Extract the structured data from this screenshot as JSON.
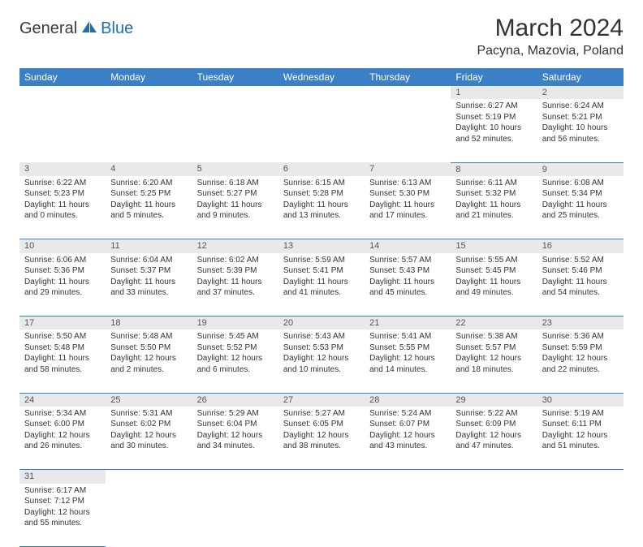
{
  "brand": {
    "text1": "General",
    "text2": "Blue"
  },
  "title": "March 2024",
  "location": "Pacyna, Mazovia, Poland",
  "colors": {
    "header_bg": "#3b7fc4",
    "header_text": "#ffffff",
    "daynum_bg": "#e9e9e9",
    "border": "#3b7fc4",
    "logo_blue": "#1f6fb2"
  },
  "day_headers": [
    "Sunday",
    "Monday",
    "Tuesday",
    "Wednesday",
    "Thursday",
    "Friday",
    "Saturday"
  ],
  "weeks": [
    [
      null,
      null,
      null,
      null,
      null,
      {
        "n": "1",
        "sr": "6:27 AM",
        "ss": "5:19 PM",
        "dl": "10 hours and 52 minutes."
      },
      {
        "n": "2",
        "sr": "6:24 AM",
        "ss": "5:21 PM",
        "dl": "10 hours and 56 minutes."
      }
    ],
    [
      {
        "n": "3",
        "sr": "6:22 AM",
        "ss": "5:23 PM",
        "dl": "11 hours and 0 minutes."
      },
      {
        "n": "4",
        "sr": "6:20 AM",
        "ss": "5:25 PM",
        "dl": "11 hours and 5 minutes."
      },
      {
        "n": "5",
        "sr": "6:18 AM",
        "ss": "5:27 PM",
        "dl": "11 hours and 9 minutes."
      },
      {
        "n": "6",
        "sr": "6:15 AM",
        "ss": "5:28 PM",
        "dl": "11 hours and 13 minutes."
      },
      {
        "n": "7",
        "sr": "6:13 AM",
        "ss": "5:30 PM",
        "dl": "11 hours and 17 minutes."
      },
      {
        "n": "8",
        "sr": "6:11 AM",
        "ss": "5:32 PM",
        "dl": "11 hours and 21 minutes."
      },
      {
        "n": "9",
        "sr": "6:08 AM",
        "ss": "5:34 PM",
        "dl": "11 hours and 25 minutes."
      }
    ],
    [
      {
        "n": "10",
        "sr": "6:06 AM",
        "ss": "5:36 PM",
        "dl": "11 hours and 29 minutes."
      },
      {
        "n": "11",
        "sr": "6:04 AM",
        "ss": "5:37 PM",
        "dl": "11 hours and 33 minutes."
      },
      {
        "n": "12",
        "sr": "6:02 AM",
        "ss": "5:39 PM",
        "dl": "11 hours and 37 minutes."
      },
      {
        "n": "13",
        "sr": "5:59 AM",
        "ss": "5:41 PM",
        "dl": "11 hours and 41 minutes."
      },
      {
        "n": "14",
        "sr": "5:57 AM",
        "ss": "5:43 PM",
        "dl": "11 hours and 45 minutes."
      },
      {
        "n": "15",
        "sr": "5:55 AM",
        "ss": "5:45 PM",
        "dl": "11 hours and 49 minutes."
      },
      {
        "n": "16",
        "sr": "5:52 AM",
        "ss": "5:46 PM",
        "dl": "11 hours and 54 minutes."
      }
    ],
    [
      {
        "n": "17",
        "sr": "5:50 AM",
        "ss": "5:48 PM",
        "dl": "11 hours and 58 minutes."
      },
      {
        "n": "18",
        "sr": "5:48 AM",
        "ss": "5:50 PM",
        "dl": "12 hours and 2 minutes."
      },
      {
        "n": "19",
        "sr": "5:45 AM",
        "ss": "5:52 PM",
        "dl": "12 hours and 6 minutes."
      },
      {
        "n": "20",
        "sr": "5:43 AM",
        "ss": "5:53 PM",
        "dl": "12 hours and 10 minutes."
      },
      {
        "n": "21",
        "sr": "5:41 AM",
        "ss": "5:55 PM",
        "dl": "12 hours and 14 minutes."
      },
      {
        "n": "22",
        "sr": "5:38 AM",
        "ss": "5:57 PM",
        "dl": "12 hours and 18 minutes."
      },
      {
        "n": "23",
        "sr": "5:36 AM",
        "ss": "5:59 PM",
        "dl": "12 hours and 22 minutes."
      }
    ],
    [
      {
        "n": "24",
        "sr": "5:34 AM",
        "ss": "6:00 PM",
        "dl": "12 hours and 26 minutes."
      },
      {
        "n": "25",
        "sr": "5:31 AM",
        "ss": "6:02 PM",
        "dl": "12 hours and 30 minutes."
      },
      {
        "n": "26",
        "sr": "5:29 AM",
        "ss": "6:04 PM",
        "dl": "12 hours and 34 minutes."
      },
      {
        "n": "27",
        "sr": "5:27 AM",
        "ss": "6:05 PM",
        "dl": "12 hours and 38 minutes."
      },
      {
        "n": "28",
        "sr": "5:24 AM",
        "ss": "6:07 PM",
        "dl": "12 hours and 43 minutes."
      },
      {
        "n": "29",
        "sr": "5:22 AM",
        "ss": "6:09 PM",
        "dl": "12 hours and 47 minutes."
      },
      {
        "n": "30",
        "sr": "5:19 AM",
        "ss": "6:11 PM",
        "dl": "12 hours and 51 minutes."
      }
    ],
    [
      {
        "n": "31",
        "sr": "6:17 AM",
        "ss": "7:12 PM",
        "dl": "12 hours and 55 minutes."
      },
      null,
      null,
      null,
      null,
      null,
      null
    ]
  ],
  "labels": {
    "sunrise": "Sunrise: ",
    "sunset": "Sunset: ",
    "daylight": "Daylight: "
  }
}
